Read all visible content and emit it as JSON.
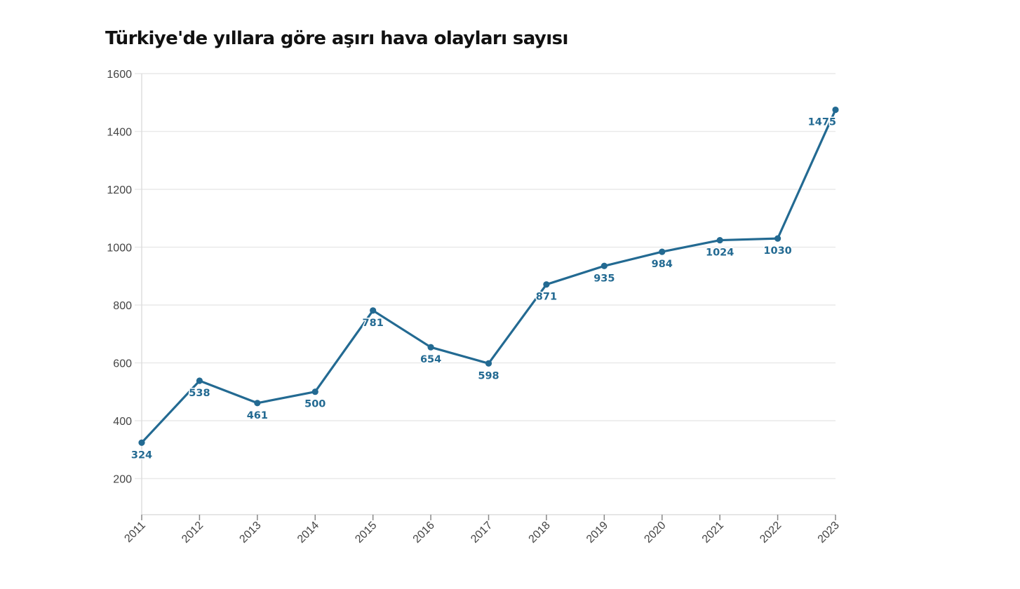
{
  "chart_data": {
    "type": "line",
    "title": "Türkiye'de yıllara göre aşırı hava olayları sayısı",
    "x": [
      "2011",
      "2012",
      "2013",
      "2014",
      "2015",
      "2016",
      "2017",
      "2018",
      "2019",
      "2020",
      "2021",
      "2022",
      "2023"
    ],
    "series": [
      {
        "values": [
          324,
          538,
          461,
          500,
          781,
          654,
          598,
          871,
          935,
          984,
          1024,
          1030,
          1475
        ],
        "color": "#236a92"
      }
    ],
    "data_labels": [
      "324",
      "538",
      "461",
      "500",
      "781",
      "654",
      "598",
      "871",
      "935",
      "984",
      "1024",
      "1030",
      "1475"
    ],
    "y_ticks": [
      200,
      400,
      600,
      800,
      1000,
      1200,
      1400,
      1600
    ],
    "ylim": [
      75,
      1600
    ],
    "grid": true,
    "xlabel": "",
    "ylabel": ""
  }
}
